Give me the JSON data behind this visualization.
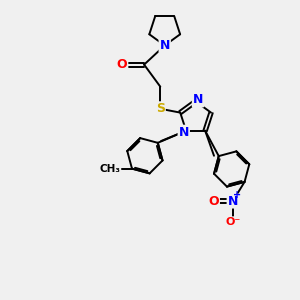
{
  "bg_color": "#f0f0f0",
  "bond_color": "#000000",
  "atom_colors": {
    "N": "#0000ff",
    "O": "#ff0000",
    "S": "#ccaa00",
    "C": "#000000"
  }
}
